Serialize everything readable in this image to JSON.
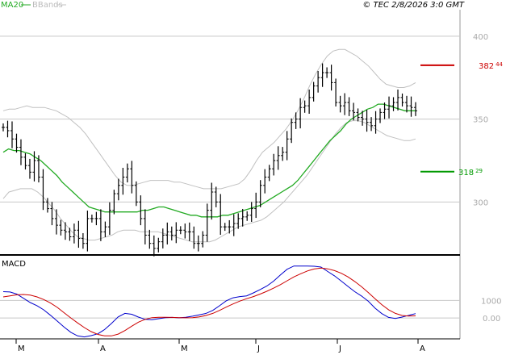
{
  "header": {
    "legend_ma20": "MA20",
    "legend_bbands": "BBands",
    "timestamp": "© TEC 2/8/2026 3:0 GMT"
  },
  "levels": {
    "resistance": {
      "value_text": "382",
      "decimals_text": "44",
      "color": "#cc0000"
    },
    "support": {
      "value_text": "318",
      "decimals_text": "29",
      "color": "#009900"
    }
  },
  "axis": {
    "price_ticks": [
      "400",
      "350",
      "300"
    ],
    "macd_ticks": [
      "1000",
      "0.00"
    ],
    "months": [
      "M",
      "A",
      "M",
      "J",
      "J",
      "A"
    ]
  },
  "macd_panel": {
    "label": "MACD"
  },
  "colors": {
    "ma20": "#22aa22",
    "bbands": "#c0c0c0",
    "bars": "#000000",
    "macd": "#0000cc",
    "signal": "#cc0000",
    "grid": "#c8c8c8"
  },
  "chart_data": {
    "type": "ohlc",
    "series_count": 125,
    "price": {
      "ylim": [
        270,
        415
      ],
      "close": [
        345,
        343,
        338,
        333,
        327,
        322,
        318,
        325,
        315,
        300,
        296,
        290,
        286,
        283,
        282,
        279,
        283,
        278,
        275,
        290,
        290,
        290,
        282,
        285,
        295,
        305,
        310,
        315,
        320,
        310,
        300,
        290,
        280,
        275,
        272,
        276,
        280,
        282,
        280,
        283,
        283,
        282,
        282,
        275,
        275,
        280,
        295,
        306,
        300,
        285,
        285,
        285,
        287,
        290,
        291,
        292,
        296,
        300,
        310,
        315,
        320,
        325,
        328,
        330,
        338,
        348,
        350,
        357,
        358,
        363,
        370,
        375,
        378,
        378,
        372,
        360,
        358,
        360,
        355,
        354,
        351,
        350,
        348,
        346,
        350,
        354,
        356,
        358,
        360,
        363,
        360,
        358,
        357,
        355
      ],
      "ma20": [
        330,
        332,
        331,
        331,
        330,
        329,
        327,
        325,
        322,
        319,
        316,
        312,
        309,
        306,
        303,
        300,
        297,
        296,
        295,
        294,
        294,
        294,
        294,
        294,
        294,
        294,
        295,
        295,
        296,
        297,
        297,
        296,
        295,
        294,
        293,
        292,
        292,
        291,
        291,
        291,
        291,
        292,
        292,
        293,
        294,
        295,
        296,
        297,
        298,
        300,
        302,
        304,
        306,
        308,
        310,
        313,
        317,
        321,
        325,
        329,
        333,
        337,
        340,
        343,
        347,
        350,
        352,
        354,
        356,
        357,
        359,
        359,
        358,
        357,
        356,
        355,
        355,
        355
      ],
      "bb_upper": [
        355,
        356,
        356,
        357,
        358,
        357,
        357,
        357,
        356,
        355,
        353,
        351,
        348,
        345,
        341,
        336,
        331,
        326,
        321,
        316,
        312,
        310,
        310,
        311,
        312,
        313,
        313,
        313,
        313,
        312,
        312,
        311,
        310,
        309,
        308,
        308,
        308,
        308,
        309,
        310,
        311,
        314,
        319,
        325,
        330,
        333,
        336,
        340,
        344,
        349,
        355,
        362,
        370,
        377,
        383,
        388,
        391,
        392,
        392,
        390,
        388,
        385,
        382,
        378,
        374,
        371,
        370,
        369,
        369,
        370,
        372
      ],
      "bb_lower": [
        302,
        306,
        307,
        308,
        308,
        308,
        306,
        303,
        299,
        295,
        290,
        286,
        282,
        279,
        278,
        277,
        277,
        278,
        279,
        280,
        282,
        283,
        283,
        283,
        282,
        282,
        282,
        282,
        281,
        280,
        279,
        278,
        277,
        276,
        276,
        276,
        276,
        277,
        279,
        281,
        283,
        285,
        286,
        287,
        288,
        289,
        291,
        294,
        297,
        300,
        304,
        308,
        312,
        316,
        321,
        326,
        331,
        336,
        341,
        345,
        348,
        349,
        349,
        348,
        346,
        344,
        342,
        340,
        339,
        338,
        337,
        337,
        338
      ]
    },
    "macd": {
      "ylim": [
        -1100,
        3500
      ],
      "macd": [
        1500,
        1480,
        1360,
        1120,
        880,
        700,
        460,
        150,
        -180,
        -520,
        -820,
        -1020,
        -1080,
        -1010,
        -900,
        -660,
        -320,
        60,
        260,
        210,
        50,
        -80,
        -100,
        -40,
        20,
        30,
        10,
        40,
        100,
        180,
        260,
        430,
        700,
        980,
        1150,
        1220,
        1260,
        1430,
        1620,
        1820,
        2100,
        2450,
        2780,
        2960,
        2960,
        2960,
        2950,
        2900,
        2650,
        2400,
        2100,
        1800,
        1500,
        1250,
        950,
        560,
        250,
        30,
        -30,
        50,
        150,
        250
      ],
      "signal": [
        1200,
        1260,
        1320,
        1340,
        1300,
        1200,
        1050,
        850,
        600,
        300,
        0,
        -280,
        -550,
        -780,
        -940,
        -1020,
        -1020,
        -920,
        -720,
        -470,
        -240,
        -80,
        20,
        40,
        40,
        30,
        20,
        10,
        20,
        60,
        140,
        260,
        430,
        620,
        800,
        960,
        1100,
        1220,
        1360,
        1520,
        1700,
        1900,
        2120,
        2340,
        2520,
        2680,
        2790,
        2840,
        2800,
        2700,
        2550,
        2340,
        2080,
        1780,
        1450,
        1100,
        760,
        470,
        260,
        140,
        110,
        120
      ]
    },
    "x_axis_labels": [
      "M",
      "A",
      "M",
      "J",
      "J",
      "A"
    ],
    "price_axis_labels": [
      "400",
      "350",
      "300"
    ],
    "macd_axis_labels": [
      "1000",
      "0.00"
    ]
  }
}
